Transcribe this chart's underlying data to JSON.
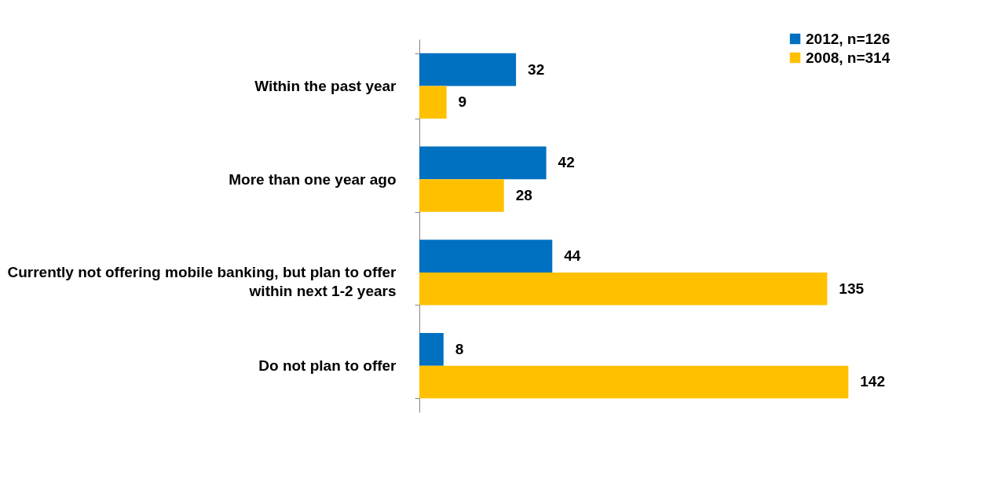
{
  "chart_data": {
    "type": "bar",
    "orientation": "horizontal",
    "categories": [
      "Within the past year",
      "More than one year ago",
      "Currently not offering mobile banking, but plan to offer within next 1-2 years",
      "Do not plan to offer"
    ],
    "series": [
      {
        "name": "2012, n=126",
        "color": "#0070c0",
        "values": [
          32,
          42,
          44,
          8
        ]
      },
      {
        "name": "2008, n=314",
        "color": "#ffc000",
        "values": [
          9,
          28,
          135,
          142
        ]
      }
    ],
    "data_labels": true,
    "legend": "top right"
  }
}
